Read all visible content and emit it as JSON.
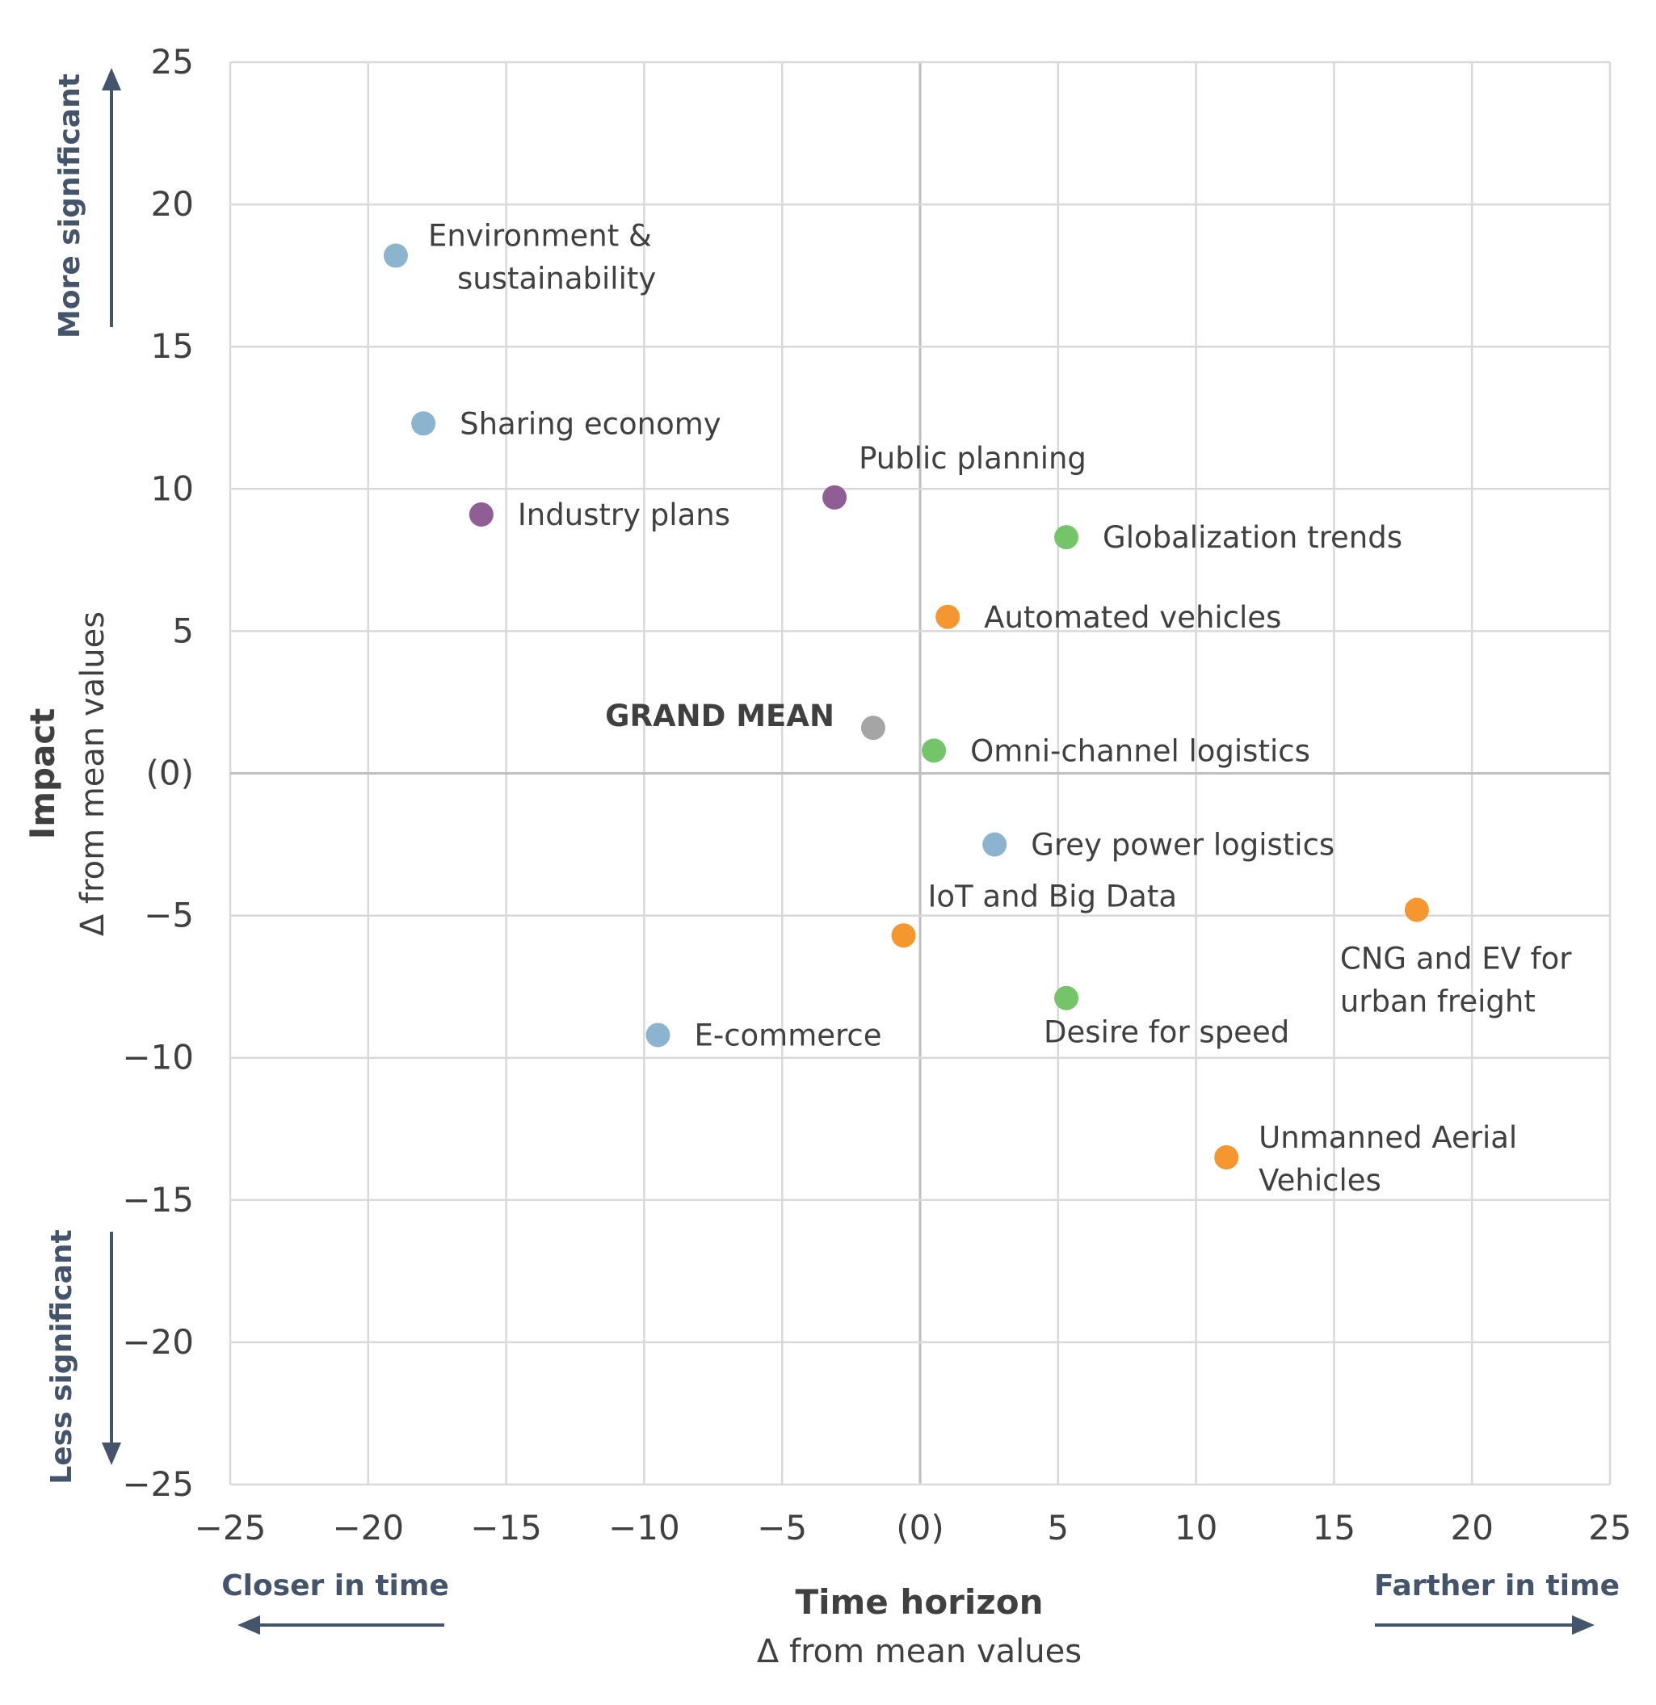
{
  "chart_data": {
    "type": "scatter",
    "title": "",
    "xlabel": "Time horizon",
    "xlabel_sub": "Δ from mean values",
    "ylabel": "Impact",
    "ylabel_sub": "Δ from mean values",
    "xlim": [
      -25,
      25
    ],
    "ylim": [
      -25,
      25
    ],
    "grid": true,
    "x_ticks": [
      "−25",
      "−20",
      "−15",
      "−10",
      "−5",
      "(0)",
      "5",
      "10",
      "15",
      "20",
      "25"
    ],
    "y_ticks": [
      "25",
      "20",
      "15",
      "10",
      "5",
      "(0)",
      "−5",
      "−10",
      "−15",
      "−20",
      "−25"
    ],
    "direction_labels": {
      "y_top": "More significant",
      "y_bottom": "Less significant",
      "x_left": "Closer in time",
      "x_right": "Farther in time"
    },
    "colors": {
      "blue": "#8db4cf",
      "purple": "#8e5e94",
      "green": "#74c46a",
      "orange": "#f5962f",
      "gray": "#a5a5a5"
    },
    "points": [
      {
        "label": [
          "Environment &",
          "sustainability"
        ],
        "x": -19.0,
        "y": 18.2,
        "color": "blue",
        "label_pos": "right-upper"
      },
      {
        "label": [
          "Sharing economy"
        ],
        "x": -18.0,
        "y": 12.3,
        "color": "blue",
        "label_pos": "right"
      },
      {
        "label": [
          "Industry plans"
        ],
        "x": -15.9,
        "y": 9.1,
        "color": "purple",
        "label_pos": "right"
      },
      {
        "label": [
          "Public planning"
        ],
        "x": -3.1,
        "y": 9.7,
        "color": "purple",
        "label_pos": "above-right"
      },
      {
        "label": [
          "Globalization trends"
        ],
        "x": 5.3,
        "y": 8.3,
        "color": "green",
        "label_pos": "right"
      },
      {
        "label": [
          "Automated vehicles"
        ],
        "x": 1.0,
        "y": 5.5,
        "color": "orange",
        "label_pos": "right"
      },
      {
        "label": [
          "GRAND MEAN"
        ],
        "x": -1.7,
        "y": 1.6,
        "color": "gray",
        "label_pos": "left",
        "bold": true
      },
      {
        "label": [
          "Omni-channel logistics"
        ],
        "x": 0.5,
        "y": 0.8,
        "color": "green",
        "label_pos": "right"
      },
      {
        "label": [
          "Grey power logistics"
        ],
        "x": 2.7,
        "y": -2.5,
        "color": "blue",
        "label_pos": "right"
      },
      {
        "label": [
          "IoT and Big Data"
        ],
        "x": -0.6,
        "y": -5.7,
        "color": "orange",
        "label_pos": "above-right"
      },
      {
        "label": [
          "CNG and EV for",
          "urban freight"
        ],
        "x": 18.0,
        "y": -4.8,
        "color": "orange",
        "label_pos": "below-left"
      },
      {
        "label": [
          "Desire for speed"
        ],
        "x": 5.3,
        "y": -7.9,
        "color": "green",
        "label_pos": "below"
      },
      {
        "label": [
          "E-commerce"
        ],
        "x": -9.5,
        "y": -9.2,
        "color": "blue",
        "label_pos": "right"
      },
      {
        "label": [
          "Unmanned Aerial",
          "Vehicles"
        ],
        "x": 11.1,
        "y": -13.5,
        "color": "orange",
        "label_pos": "right-upper"
      }
    ]
  }
}
